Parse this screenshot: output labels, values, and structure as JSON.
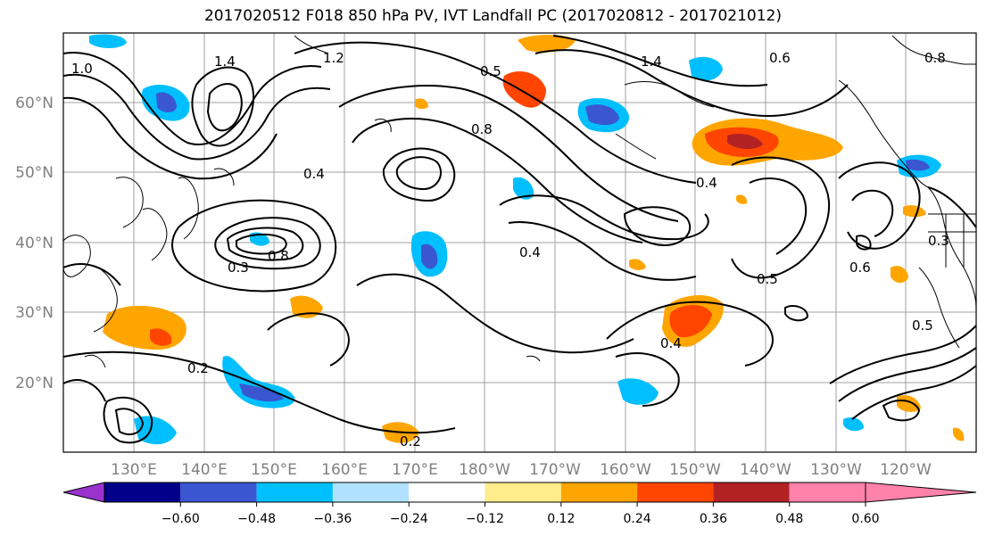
{
  "title": "2017020512 F018 850 hPa PV, IVT Landfall PC (2017020812 - 2017021012)",
  "lat_labels": [
    "60°N",
    "50°N",
    "40°N",
    "30°N",
    "20°N"
  ],
  "lon_labels": [
    "130°E",
    "140°E",
    "150°E",
    "160°E",
    "170°E",
    "180°W",
    "170°W",
    "160°W",
    "150°W",
    "140°W",
    "130°W",
    "120°W"
  ],
  "colorbar": {
    "ticks": [
      "−0.60",
      "−0.48",
      "−0.36",
      "−0.24",
      "−0.12",
      "0.12",
      "0.24",
      "0.36",
      "0.48",
      "0.60"
    ],
    "colors": [
      "#9a32cd",
      "#00008b",
      "#3a56d0",
      "#00bfff",
      "#b0e2ff",
      "#ffffff",
      "#ffec8b",
      "#ffa500",
      "#ff4500",
      "#b22222",
      "#ff82ab"
    ]
  },
  "contour_labels": [
    "1.4",
    "1.2",
    "1.0",
    "0.8",
    "0.5",
    "0.4",
    "0.3",
    "0.6",
    "0.2",
    "1.4",
    "0.6",
    "0.8",
    "0.4",
    "0.4",
    "0.5",
    "0.5",
    "0.3",
    "0.2",
    "0.8",
    "0.4"
  ]
}
